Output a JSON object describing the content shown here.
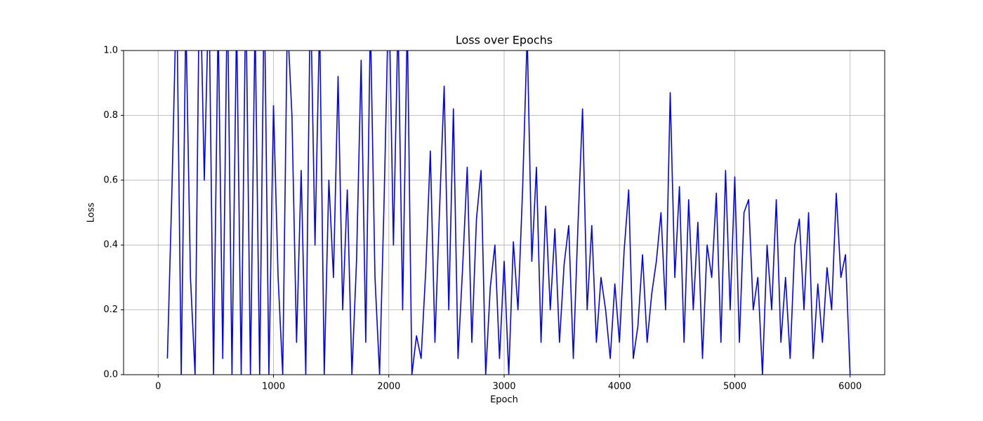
{
  "chart_data": {
    "type": "line",
    "title": "Loss over Epochs",
    "xlabel": "Epoch",
    "ylabel": "Loss",
    "x": [
      80,
      120,
      160,
      200,
      240,
      280,
      320,
      360,
      400,
      440,
      480,
      520,
      560,
      600,
      640,
      680,
      720,
      760,
      800,
      840,
      880,
      920,
      960,
      1000,
      1040,
      1080,
      1120,
      1160,
      1200,
      1240,
      1280,
      1320,
      1360,
      1400,
      1440,
      1480,
      1520,
      1560,
      1600,
      1640,
      1680,
      1720,
      1760,
      1800,
      1840,
      1880,
      1920,
      1960,
      2000,
      2040,
      2080,
      2120,
      2160,
      2200,
      2240,
      2280,
      2320,
      2360,
      2400,
      2440,
      2480,
      2520,
      2560,
      2600,
      2640,
      2680,
      2720,
      2760,
      2800,
      2840,
      2880,
      2920,
      2960,
      3000,
      3040,
      3080,
      3120,
      3160,
      3200,
      3240,
      3280,
      3320,
      3360,
      3400,
      3440,
      3480,
      3520,
      3560,
      3600,
      3640,
      3680,
      3720,
      3760,
      3800,
      3840,
      3880,
      3920,
      3960,
      4000,
      4040,
      4080,
      4120,
      4160,
      4200,
      4240,
      4280,
      4320,
      4360,
      4400,
      4440,
      4480,
      4520,
      4560,
      4600,
      4640,
      4680,
      4720,
      4760,
      4800,
      4840,
      4880,
      4920,
      4960,
      5000,
      5040,
      5080,
      5120,
      5160,
      5200,
      5240,
      5280,
      5320,
      5360,
      5400,
      5440,
      5480,
      5520,
      5560,
      5600,
      5640,
      5680,
      5720,
      5760,
      5800,
      5840,
      5880,
      5920,
      5960,
      6000
    ],
    "series": [
      {
        "name": "Loss",
        "color": "#0000ff",
        "values": [
          0.05,
          0.58,
          1.2,
          0.0,
          1.1,
          0.3,
          0.0,
          1.3,
          0.6,
          1.2,
          0.0,
          1.1,
          0.05,
          1.2,
          0.0,
          1.1,
          0.0,
          1.2,
          0.0,
          1.1,
          0.0,
          1.2,
          0.0,
          0.83,
          0.3,
          0.0,
          1.1,
          0.8,
          0.1,
          0.63,
          0.0,
          1.2,
          0.4,
          1.1,
          0.0,
          0.6,
          0.3,
          0.92,
          0.2,
          0.57,
          0.0,
          0.35,
          0.97,
          0.1,
          1.1,
          0.3,
          0.0,
          0.55,
          1.2,
          0.4,
          1.1,
          0.2,
          1.1,
          0.0,
          0.12,
          0.05,
          0.32,
          0.69,
          0.1,
          0.51,
          0.89,
          0.2,
          0.82,
          0.05,
          0.33,
          0.64,
          0.1,
          0.48,
          0.63,
          0.0,
          0.27,
          0.4,
          0.05,
          0.35,
          0.0,
          0.41,
          0.2,
          0.57,
          1.05,
          0.35,
          0.64,
          0.1,
          0.52,
          0.2,
          0.45,
          0.1,
          0.34,
          0.46,
          0.05,
          0.46,
          0.82,
          0.2,
          0.46,
          0.1,
          0.3,
          0.2,
          0.05,
          0.28,
          0.1,
          0.38,
          0.57,
          0.05,
          0.15,
          0.37,
          0.1,
          0.25,
          0.35,
          0.5,
          0.2,
          0.87,
          0.3,
          0.58,
          0.1,
          0.54,
          0.2,
          0.47,
          0.05,
          0.4,
          0.3,
          0.56,
          0.1,
          0.63,
          0.2,
          0.61,
          0.1,
          0.5,
          0.54,
          0.2,
          0.3,
          0.0,
          0.4,
          0.2,
          0.54,
          0.1,
          0.3,
          0.05,
          0.4,
          0.48,
          0.2,
          0.5,
          0.05,
          0.28,
          0.1,
          0.33,
          0.2,
          0.56,
          0.3,
          0.37,
          0.0
        ]
      }
    ],
    "xlim": [
      -300,
      6300
    ],
    "xticks": [
      0,
      1000,
      2000,
      3000,
      4000,
      5000,
      6000
    ],
    "ylim": [
      0,
      1
    ],
    "yticks": [
      {
        "value": 0,
        "label": "0.0"
      },
      0.2,
      0.4,
      0.6,
      0.8,
      {
        "value": 1,
        "label": "1.0"
      }
    ],
    "grid": true
  }
}
